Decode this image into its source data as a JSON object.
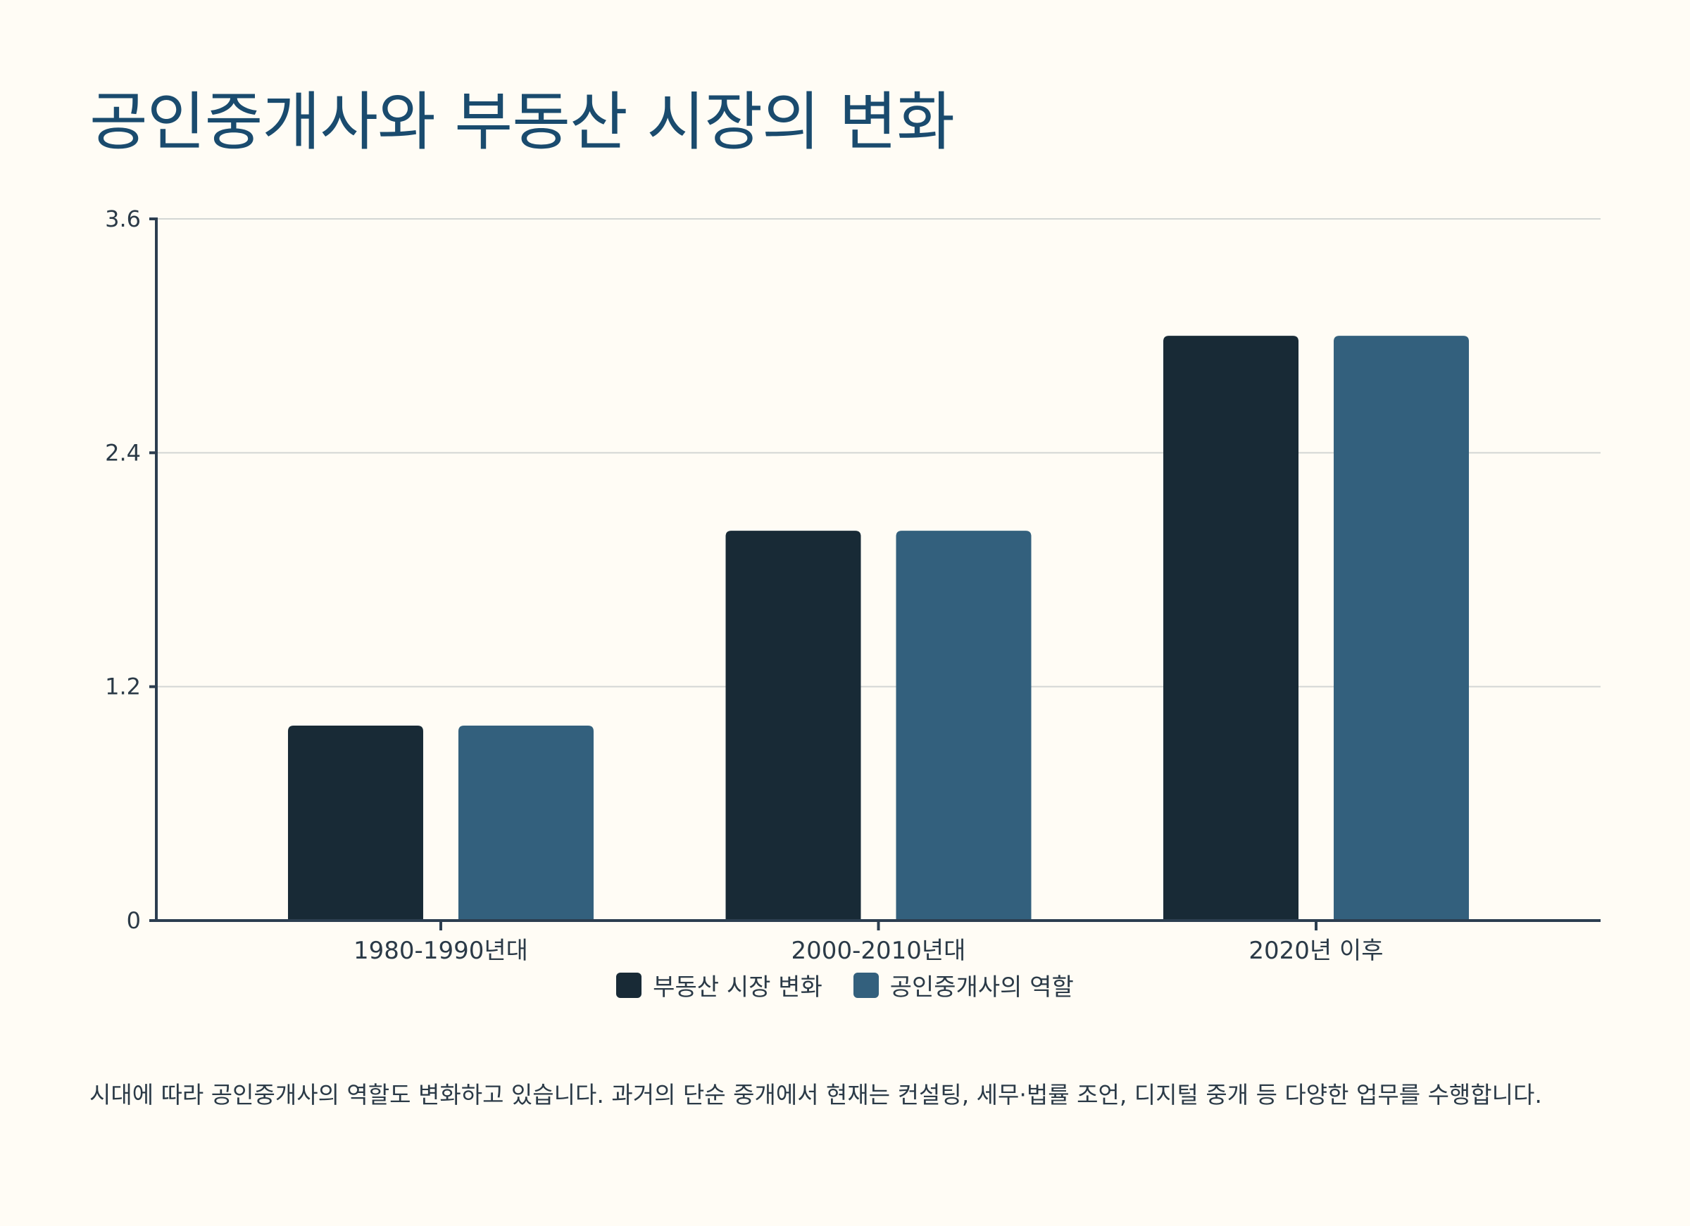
{
  "title": "공인중개사와 부동산 시장의 변화",
  "caption": "시대에 따라 공인중개사의 역할도 변화하고 있습니다. 과거의 단순 중개에서 현재는 컨설팅, 세무·법률 조언, 디지털 중개 등 다양한 업무를 수행합니다.",
  "chart_data": {
    "type": "bar",
    "categories": [
      "1980-1990년대",
      "2000-2010년대",
      "2020년 이후"
    ],
    "series": [
      {
        "name": "부동산 시장 변화",
        "values": [
          1,
          2,
          3
        ],
        "color": "#182a36"
      },
      {
        "name": "공인중개사의 역할",
        "values": [
          1,
          2,
          3
        ],
        "color": "#33607d"
      }
    ],
    "ylim": [
      0,
      3.6
    ],
    "yticks": [
      0,
      1.2,
      2.4,
      3.6
    ],
    "ytick_labels": [
      "0",
      "1.2",
      "2.4",
      "3.6"
    ],
    "grid": true,
    "legend_position": "bottom-center",
    "xlabel": "",
    "ylabel": ""
  },
  "colors": {
    "title": "#1a4b6e",
    "axis": "#2c3e50",
    "grid": "#d3d6d4",
    "background": "#fffcf5"
  }
}
